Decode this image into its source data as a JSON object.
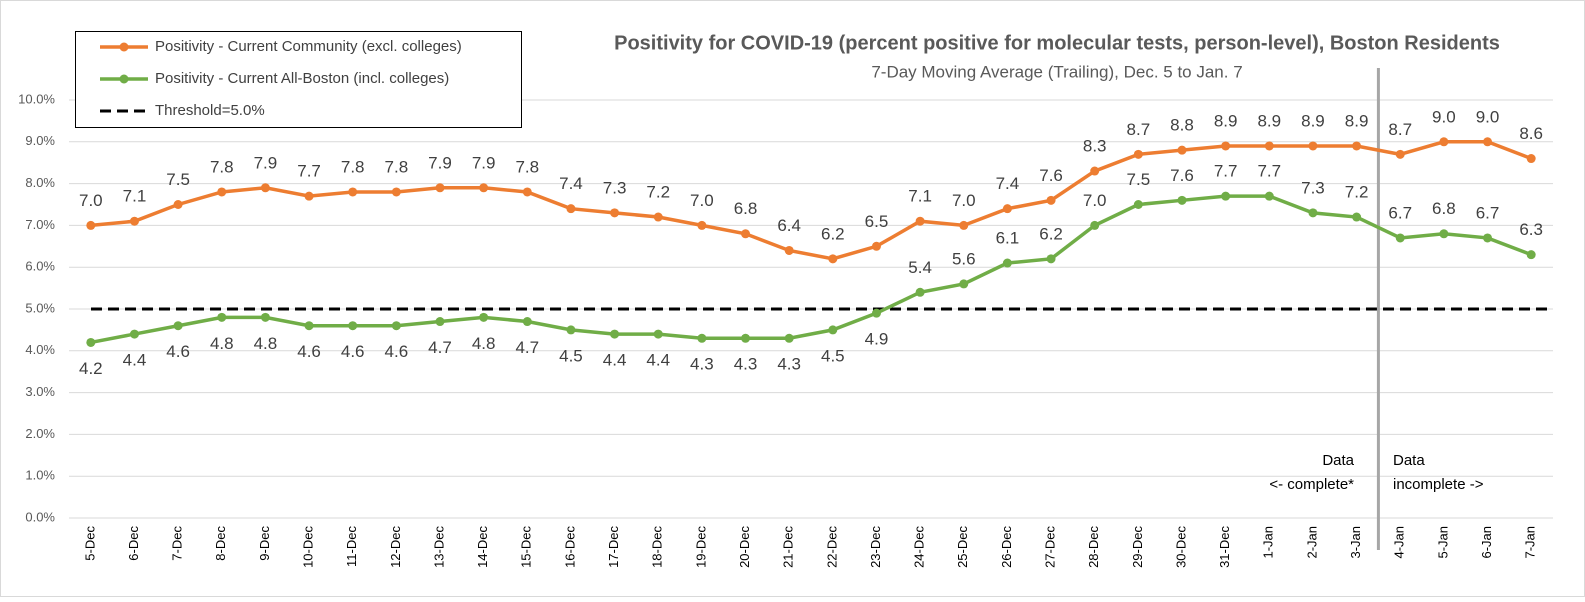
{
  "chart_data": {
    "type": "line",
    "title": "Positivity for COVID-19 (percent positive for molecular tests, person-level), Boston Residents",
    "subtitle": "7-Day Moving Average (Trailing), Dec. 5 to Jan. 7",
    "categories": [
      "5-Dec",
      "6-Dec",
      "7-Dec",
      "8-Dec",
      "9-Dec",
      "10-Dec",
      "11-Dec",
      "12-Dec",
      "13-Dec",
      "14-Dec",
      "15-Dec",
      "16-Dec",
      "17-Dec",
      "18-Dec",
      "19-Dec",
      "20-Dec",
      "21-Dec",
      "22-Dec",
      "23-Dec",
      "24-Dec",
      "25-Dec",
      "26-Dec",
      "27-Dec",
      "28-Dec",
      "29-Dec",
      "30-Dec",
      "31-Dec",
      "1-Jan",
      "2-Jan",
      "3-Jan",
      "4-Jan",
      "5-Jan",
      "6-Jan",
      "7-Jan"
    ],
    "series": [
      {
        "name": "Positivity - Current Community (excl. colleges)",
        "color": "#ED7D31",
        "values": [
          7.0,
          7.1,
          7.5,
          7.8,
          7.9,
          7.7,
          7.8,
          7.8,
          7.9,
          7.9,
          7.8,
          7.4,
          7.3,
          7.2,
          7.0,
          6.8,
          6.4,
          6.2,
          6.5,
          7.1,
          7.0,
          7.4,
          7.6,
          8.3,
          8.7,
          8.8,
          8.9,
          8.9,
          8.9,
          8.9,
          8.7,
          9.0,
          9.0,
          8.6
        ],
        "value_labels": [
          "7.0",
          "7.1",
          "7.5",
          "7.8",
          "7.9",
          "7.7",
          "7.8",
          "7.8",
          "7.9",
          "7.9",
          "7.8",
          "7.4",
          "7.3",
          "7.2",
          "7.0",
          "6.8",
          "6.4",
          "6.2",
          "6.5",
          "7.1",
          "7.0",
          "7.4",
          "7.6",
          "8.3",
          "8.7",
          "8.8",
          "8.9",
          "8.9",
          "8.9",
          "8.9",
          "8.7",
          "9.0",
          "9.0",
          "8.6"
        ]
      },
      {
        "name": "Positivity - Current All-Boston (incl. colleges)",
        "color": "#70AD47",
        "values": [
          4.2,
          4.4,
          4.6,
          4.8,
          4.8,
          4.6,
          4.6,
          4.6,
          4.7,
          4.8,
          4.7,
          4.5,
          4.4,
          4.4,
          4.3,
          4.3,
          4.3,
          4.5,
          4.9,
          5.4,
          5.6,
          6.1,
          6.2,
          7.0,
          7.5,
          7.6,
          7.7,
          7.7,
          7.3,
          7.2,
          6.7,
          6.8,
          6.7,
          6.3
        ],
        "value_labels": [
          "4.2",
          "4.4",
          "4.6",
          "4.8",
          "4.8",
          "4.6",
          "4.6",
          "4.6",
          "4.7",
          "4.8",
          "4.7",
          "4.5",
          "4.4",
          "4.4",
          "4.3",
          "4.3",
          "4.3",
          "4.5",
          "4.9",
          "5.4",
          "5.6",
          "6.1",
          "6.2",
          "7.0",
          "7.5",
          "7.6",
          "7.7",
          "7.7",
          "7.3",
          "7.2",
          "6.7",
          "6.8",
          "6.7",
          "6.3"
        ]
      }
    ],
    "threshold": {
      "name": "Threshold=5.0%",
      "value": 5,
      "color": "#000000"
    },
    "annotations": [
      [
        "Data",
        "<- complete*"
      ],
      [
        "Data",
        "incomplete ->"
      ]
    ],
    "ylim": [
      0,
      10
    ],
    "yticks": [
      {
        "value": 0,
        "label": "0.0%"
      },
      {
        "value": 1,
        "label": "1.0%"
      },
      {
        "value": 2,
        "label": "2.0%"
      },
      {
        "value": 3,
        "label": "3.0%"
      },
      {
        "value": 4,
        "label": "4.0%"
      },
      {
        "value": 5,
        "label": "5.0%"
      },
      {
        "value": 6,
        "label": "6.0%"
      },
      {
        "value": 7,
        "label": "7.0%"
      },
      {
        "value": 8,
        "label": "8.0%"
      },
      {
        "value": 9,
        "label": "9.0%"
      },
      {
        "value": 10,
        "label": "10.0%"
      }
    ],
    "grid": true
  }
}
